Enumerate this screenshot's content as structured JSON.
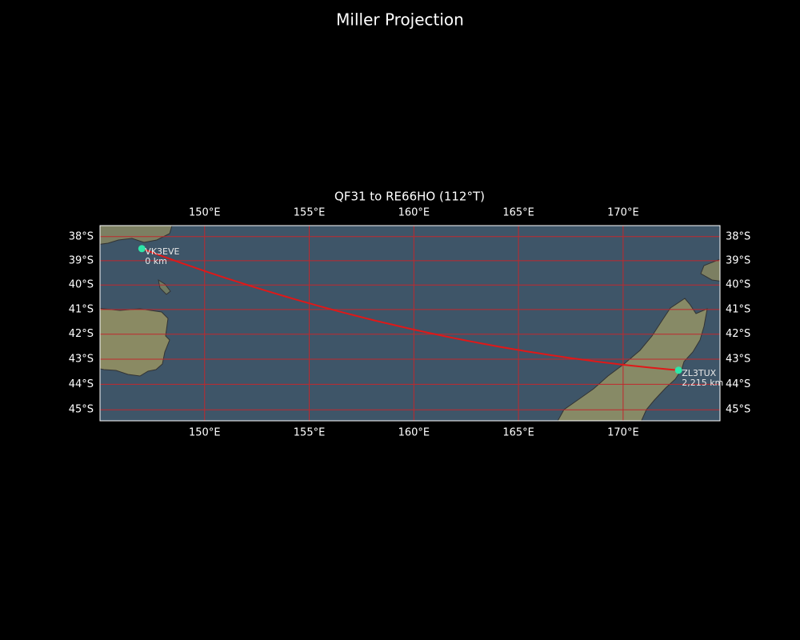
{
  "title": "Miller Projection",
  "map": {
    "subtitle": "QF31 to RE66HO (112°T)",
    "projection": "miller",
    "xlim": [
      145.0,
      174.63
    ],
    "ylim": [
      -45.43,
      -37.54
    ],
    "xticks": [
      {
        "value": 150,
        "label": "150°E"
      },
      {
        "value": 155,
        "label": "155°E"
      },
      {
        "value": 160,
        "label": "160°E"
      },
      {
        "value": 165,
        "label": "165°E"
      },
      {
        "value": 170,
        "label": "170°E"
      }
    ],
    "yticks": [
      {
        "value": -38,
        "label": "38°S"
      },
      {
        "value": -39,
        "label": "39°S"
      },
      {
        "value": -40,
        "label": "40°S"
      },
      {
        "value": -41,
        "label": "41°S"
      },
      {
        "value": -42,
        "label": "42°S"
      },
      {
        "value": -43,
        "label": "43°S"
      },
      {
        "value": -44,
        "label": "44°S"
      },
      {
        "value": -45,
        "label": "45°S"
      }
    ],
    "grid": true,
    "grid_color": "#c0282d",
    "path_color": "#e01818",
    "marker_color": "#2ee6a8",
    "stations": [
      {
        "name": "VK3EVE",
        "lon": 147.0,
        "lat": -38.5,
        "distance": 0,
        "distance_label": "0 km"
      },
      {
        "name": "ZL3TUX",
        "lon": 172.65,
        "lat": -43.44,
        "distance": 2215,
        "distance_label": "2,215 km"
      }
    ]
  }
}
